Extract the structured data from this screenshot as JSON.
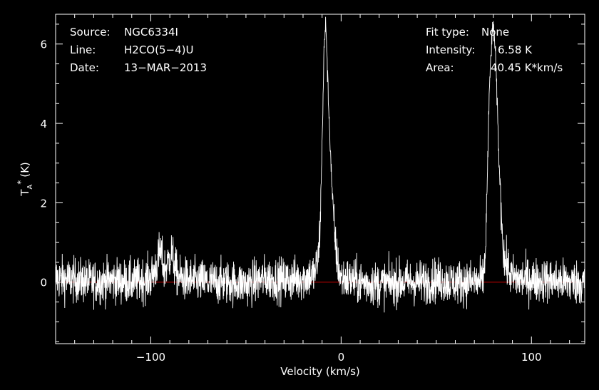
{
  "header": {
    "source_label": "Source:",
    "source_value": "NGC6334I",
    "line_label": "Line:",
    "line_value": "H2CO(5−4)U",
    "date_label": "Date:",
    "date_value": "13−MAR−2013",
    "fit_label": "Fit type:",
    "fit_value": "None",
    "intensity_label": "Intensity:",
    "intensity_value": "6.58 K",
    "area_label": "Area:",
    "area_value": "40.45 K*km/s"
  },
  "chart_data": {
    "type": "line",
    "xlabel": "Velocity (km/s)",
    "ylabel": "T",
    "ylabel_sub": "A",
    "ylabel_sup": "*",
    "ylabel_unit": "(K)",
    "xlim": [
      -150,
      128
    ],
    "ylim": [
      -1.55,
      6.75
    ],
    "x_ticks": [
      -100,
      0,
      100
    ],
    "x_tick_labels": [
      "−100",
      "0",
      "100"
    ],
    "y_ticks": [
      0,
      2,
      4,
      6
    ],
    "y_tick_labels": [
      "0",
      "2",
      "4",
      "6"
    ],
    "baseline_y": 0,
    "colors": {
      "spectrum": "#ffffff",
      "baseline": "#cc0000",
      "axes": "#ffffff"
    },
    "series": [
      {
        "x": [
          -150,
          -140,
          -130,
          -120,
          -110,
          -100,
          -97,
          -95,
          -93,
          -91,
          -89,
          -87,
          -85,
          -80,
          -70,
          -60,
          -50,
          -40,
          -30,
          -20,
          -14,
          -12,
          -11,
          -10,
          -9,
          -8,
          -7,
          -6,
          -5,
          -4,
          -3,
          -2,
          0,
          10,
          20,
          30,
          40,
          50,
          60,
          70,
          74,
          75,
          76,
          77,
          78,
          79,
          80,
          81,
          82,
          83,
          84,
          85,
          86,
          88,
          90,
          100,
          110,
          120,
          128
        ],
        "y": [
          0.1,
          0.05,
          0.0,
          0.05,
          0.0,
          0.1,
          0.4,
          0.8,
          0.3,
          0.5,
          0.75,
          0.3,
          0.1,
          0.05,
          0.0,
          0.0,
          -0.05,
          0.1,
          0.05,
          0.1,
          0.2,
          0.6,
          1.5,
          3.5,
          5.8,
          6.58,
          5.0,
          3.8,
          2.6,
          1.6,
          1.0,
          0.5,
          0.1,
          0.0,
          -0.05,
          0.0,
          0.0,
          0.05,
          0.0,
          0.0,
          0.0,
          0.2,
          1.0,
          3.0,
          5.0,
          6.0,
          6.5,
          5.8,
          4.5,
          3.0,
          2.0,
          1.0,
          0.5,
          0.3,
          0.1,
          0.05,
          0.05,
          0.0,
          0.0
        ],
        "noise_rms": 0.28
      }
    ]
  }
}
